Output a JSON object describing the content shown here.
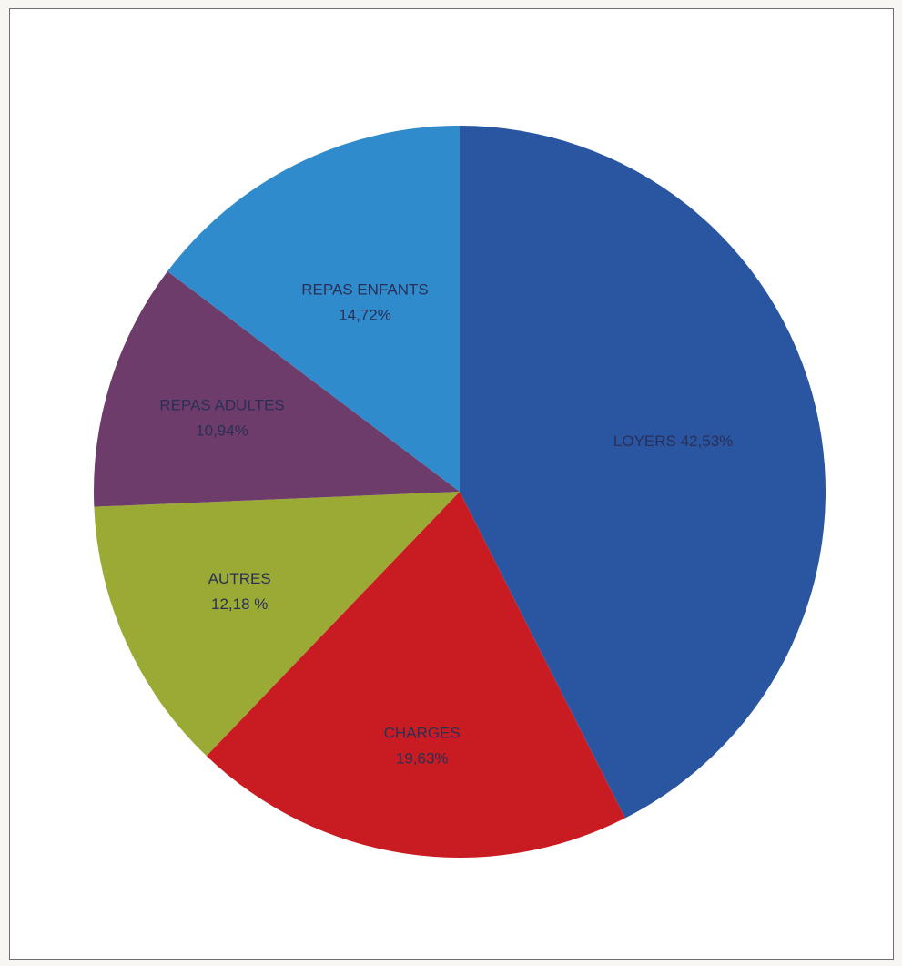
{
  "chart_data": {
    "type": "pie",
    "title": "",
    "start_angle_deg": 0,
    "direction": "clockwise",
    "slices": [
      {
        "label": "LOYERS",
        "value_text": "42,53%",
        "value": 42.53,
        "color": "#2a55a1",
        "label_lines": [
          "LOYERS 42,53%"
        ]
      },
      {
        "label": "CHARGES",
        "value_text": "19,63%",
        "value": 19.63,
        "color": "#c81c22",
        "label_lines": [
          "CHARGES",
          "19,63%"
        ]
      },
      {
        "label": "AUTRES",
        "value_text": "12,18 %",
        "value": 12.18,
        "color": "#9aaa35",
        "label_lines": [
          "AUTRES",
          "12,18 %"
        ]
      },
      {
        "label": "REPAS ADULTES",
        "value_text": "10,94%",
        "value": 10.94,
        "color": "#6e3c6b",
        "label_lines": [
          "REPAS ADULTES",
          "10,94%"
        ]
      },
      {
        "label": "REPAS ENFANTS",
        "value_text": "14,72%",
        "value": 14.72,
        "color": "#2f8bcc",
        "label_lines": [
          "REPAS ENFANTS",
          "14,72%"
        ]
      }
    ]
  }
}
